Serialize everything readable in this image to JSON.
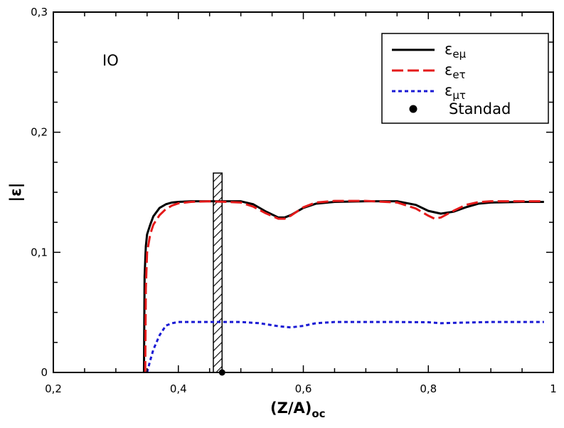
{
  "chart_data": {
    "type": "line",
    "xlabel": "(Z/A)",
    "xlabel_sub": "oc",
    "ylabel": "|ε|",
    "xlim": [
      0.2,
      1.0
    ],
    "ylim": [
      0,
      0.3
    ],
    "x_ticks": [
      0.2,
      0.4,
      0.6,
      0.8,
      1.0
    ],
    "x_tick_labels": [
      "0,2",
      "0,4",
      "0,6",
      "0,8",
      "1"
    ],
    "y_ticks": [
      0,
      0.1,
      0.2,
      0.3
    ],
    "y_tick_labels": [
      "0",
      "0,1",
      "0,2",
      "0,3"
    ],
    "annotation": "IO",
    "legend_position": "top-right",
    "grid": false,
    "series": [
      {
        "name": "ε",
        "name_sub": "eμ",
        "color": "#000000",
        "dash": "solid",
        "x": [
          0.345,
          0.346,
          0.348,
          0.35,
          0.355,
          0.36,
          0.37,
          0.38,
          0.39,
          0.4,
          0.42,
          0.45,
          0.5,
          0.52,
          0.54,
          0.56,
          0.57,
          0.58,
          0.6,
          0.62,
          0.65,
          0.7,
          0.75,
          0.78,
          0.8,
          0.82,
          0.84,
          0.86,
          0.88,
          0.9,
          0.95,
          0.985
        ],
        "y": [
          0.0,
          0.08,
          0.105,
          0.115,
          0.123,
          0.13,
          0.137,
          0.14,
          0.1415,
          0.142,
          0.1425,
          0.1425,
          0.1425,
          0.14,
          0.134,
          0.129,
          0.129,
          0.131,
          0.137,
          0.1405,
          0.142,
          0.1425,
          0.1425,
          0.1395,
          0.1345,
          0.1322,
          0.1338,
          0.1375,
          0.1405,
          0.1415,
          0.142,
          0.142
        ]
      },
      {
        "name": "ε",
        "name_sub": "eτ",
        "color": "#e41a1a",
        "dash": "dashed",
        "x": [
          0.347,
          0.348,
          0.35,
          0.355,
          0.36,
          0.37,
          0.38,
          0.39,
          0.4,
          0.42,
          0.45,
          0.5,
          0.52,
          0.54,
          0.56,
          0.57,
          0.58,
          0.6,
          0.62,
          0.65,
          0.7,
          0.75,
          0.78,
          0.8,
          0.81,
          0.82,
          0.84,
          0.86,
          0.88,
          0.9,
          0.95,
          0.985
        ],
        "y": [
          0.0,
          0.07,
          0.1,
          0.115,
          0.123,
          0.131,
          0.136,
          0.139,
          0.1408,
          0.142,
          0.1425,
          0.1415,
          0.138,
          0.1325,
          0.128,
          0.128,
          0.1305,
          0.1375,
          0.1415,
          0.1428,
          0.1428,
          0.1415,
          0.1365,
          0.1305,
          0.128,
          0.129,
          0.1345,
          0.1395,
          0.1418,
          0.1425,
          0.1425,
          0.1425
        ]
      },
      {
        "name": "ε",
        "name_sub": "μτ",
        "color": "#1a1ad4",
        "dash": "dotted",
        "x": [
          0.35,
          0.355,
          0.36,
          0.37,
          0.38,
          0.39,
          0.4,
          0.45,
          0.5,
          0.53,
          0.56,
          0.58,
          0.6,
          0.62,
          0.65,
          0.7,
          0.75,
          0.8,
          0.82,
          0.84,
          0.9,
          0.985
        ],
        "y": [
          0.0,
          0.01,
          0.019,
          0.031,
          0.039,
          0.041,
          0.042,
          0.042,
          0.042,
          0.041,
          0.0385,
          0.0375,
          0.0388,
          0.041,
          0.042,
          0.042,
          0.042,
          0.0418,
          0.041,
          0.0413,
          0.042,
          0.042
        ]
      }
    ],
    "standard_point": {
      "name": "Standad",
      "x": 0.47,
      "y": 0.0,
      "color": "#000000"
    },
    "hatched_band": {
      "x_from": 0.456,
      "x_to": 0.47,
      "y_from": 0.0,
      "y_to": 0.166
    }
  }
}
